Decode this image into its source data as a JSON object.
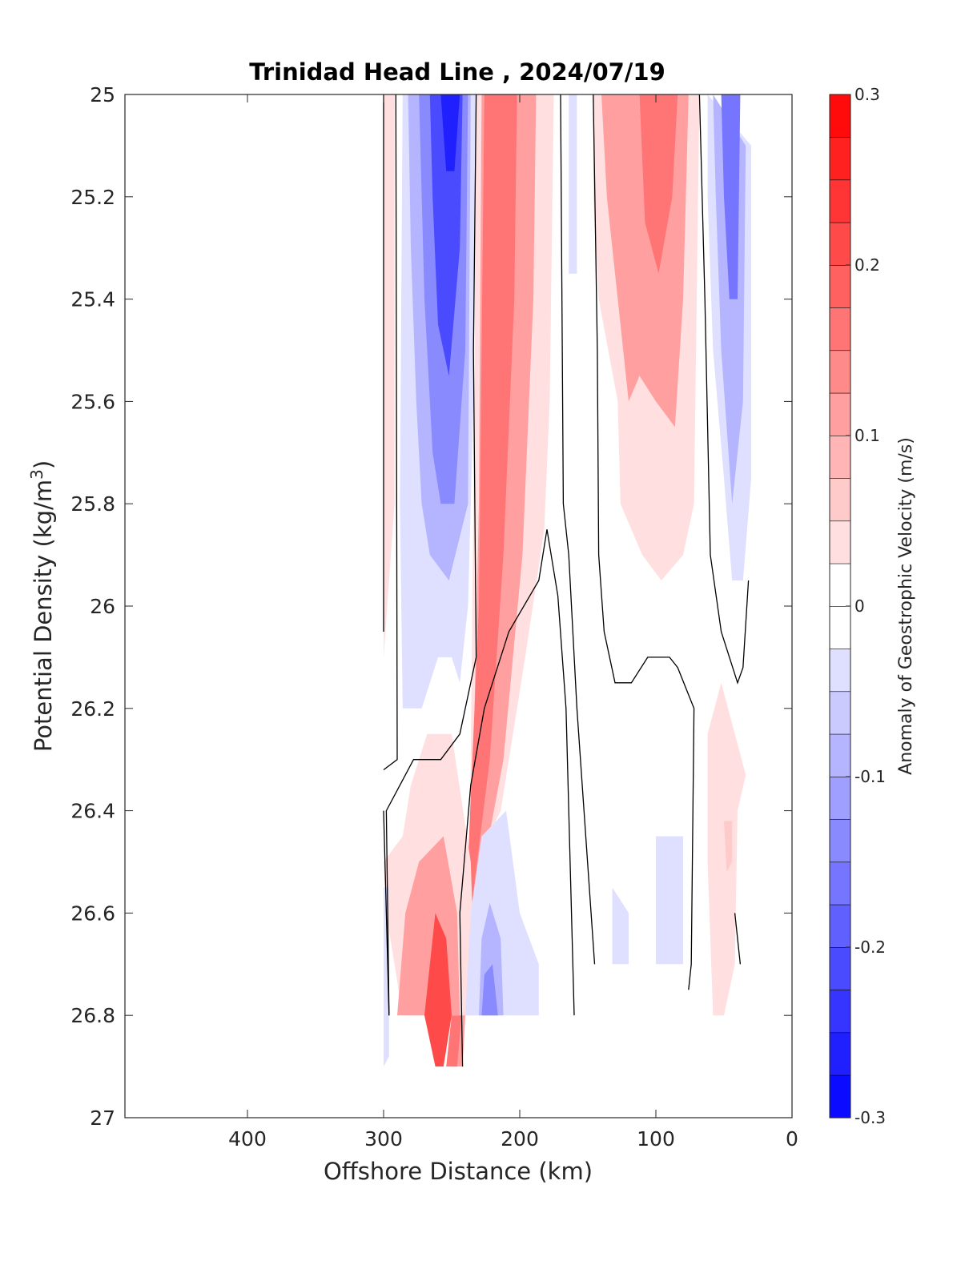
{
  "chart_data": {
    "type": "heatmap",
    "title": "Trinidad Head Line , 2024/07/19",
    "xlabel": "Offshore Distance (km)",
    "ylabel_main": "Potential Density (kg/m",
    "ylabel_sup": "3",
    "ylabel_end": ")",
    "xlim": [
      490,
      0
    ],
    "ylim": [
      25,
      27
    ],
    "x_reversed": true,
    "y_reversed": true,
    "xticks": [
      400,
      300,
      200,
      100,
      0
    ],
    "yticks": [
      25,
      25.2,
      25.4,
      25.6,
      25.8,
      26,
      26.2,
      26.4,
      26.6,
      26.8,
      27
    ],
    "ytick_labels": [
      "25",
      "25.2",
      "25.4",
      "25.6",
      "25.8",
      "26",
      "26.2",
      "26.4",
      "26.6",
      "26.8",
      "27"
    ],
    "colorbar": {
      "label": "Anomaly of Geostrophic Velocity (m/s)",
      "min": -0.3,
      "max": 0.3,
      "levels": 24,
      "ticks": [
        0.3,
        0.2,
        0.1,
        0,
        -0.1,
        -0.2,
        -0.3
      ],
      "tick_labels": [
        "0.3",
        "0.2",
        "0.1",
        "0",
        "-0.1",
        "-0.2",
        "-0.3"
      ],
      "low_color": "#0000ff",
      "mid_color": "#ffffff",
      "high_color": "#ff0000"
    },
    "fields": [
      {
        "value": 0.03,
        "points": [
          [
            300,
            25
          ],
          [
            292,
            25
          ],
          [
            292,
            25.8
          ],
          [
            300,
            26.1
          ]
        ]
      },
      {
        "value": -0.04,
        "points": [
          [
            286,
            25
          ],
          [
            232,
            25
          ],
          [
            234,
            25.6
          ],
          [
            238,
            26
          ],
          [
            244,
            26.15
          ],
          [
            250,
            26.1
          ],
          [
            260,
            26.1
          ],
          [
            272,
            26.2
          ],
          [
            286,
            26.2
          ],
          [
            288,
            25.8
          ]
        ]
      },
      {
        "value": -0.1,
        "points": [
          [
            282,
            25
          ],
          [
            236,
            25
          ],
          [
            238,
            25.8
          ],
          [
            252,
            25.95
          ],
          [
            266,
            25.9
          ],
          [
            272,
            25.8
          ],
          [
            276,
            25.6
          ],
          [
            280,
            25.3
          ]
        ]
      },
      {
        "value": -0.15,
        "points": [
          [
            274,
            25
          ],
          [
            238,
            25
          ],
          [
            240,
            25.5
          ],
          [
            248,
            25.8
          ],
          [
            258,
            25.8
          ],
          [
            264,
            25.7
          ],
          [
            270,
            25.4
          ]
        ]
      },
      {
        "value": -0.2,
        "points": [
          [
            266,
            25
          ],
          [
            242,
            25
          ],
          [
            244,
            25.3
          ],
          [
            252,
            25.55
          ],
          [
            260,
            25.45
          ],
          [
            264,
            25.2
          ]
        ]
      },
      {
        "value": -0.26,
        "points": [
          [
            258,
            25
          ],
          [
            244,
            25
          ],
          [
            248,
            25.15
          ],
          [
            254,
            25.15
          ]
        ]
      },
      {
        "value": 0.04,
        "points": [
          [
            232,
            25
          ],
          [
            175,
            25
          ],
          [
            178,
            25.6
          ],
          [
            182,
            25.85
          ],
          [
            196,
            26.1
          ],
          [
            214,
            26.4
          ],
          [
            232,
            26.5
          ],
          [
            244,
            26.7
          ],
          [
            250,
            26.9
          ],
          [
            244,
            26.9
          ],
          [
            238,
            26.6
          ],
          [
            236,
            26.3
          ],
          [
            234,
            25.8
          ]
        ]
      },
      {
        "value": 0.1,
        "points": [
          [
            228,
            25
          ],
          [
            188,
            25
          ],
          [
            190,
            25.4
          ],
          [
            198,
            25.9
          ],
          [
            212,
            26.3
          ],
          [
            226,
            26.5
          ],
          [
            238,
            26.7
          ],
          [
            242,
            26.9
          ],
          [
            250,
            26.9
          ],
          [
            240,
            26.6
          ],
          [
            234,
            26.3
          ],
          [
            230,
            25.8
          ]
        ]
      },
      {
        "value": 0.16,
        "points": [
          [
            226,
            25
          ],
          [
            202,
            25
          ],
          [
            204,
            25.4
          ],
          [
            212,
            25.9
          ],
          [
            222,
            26.3
          ],
          [
            236,
            26.6
          ],
          [
            246,
            26.9
          ],
          [
            254,
            26.9
          ],
          [
            238,
            26.5
          ],
          [
            230,
            26
          ],
          [
            228,
            25.5
          ]
        ]
      },
      {
        "value": 0.03,
        "points": [
          [
            300,
            26.5
          ],
          [
            286,
            26.45
          ],
          [
            280,
            26.35
          ],
          [
            268,
            26.25
          ],
          [
            250,
            26.25
          ],
          [
            236,
            26.5
          ],
          [
            232,
            26.8
          ],
          [
            286,
            26.8
          ],
          [
            298,
            26.6
          ]
        ]
      },
      {
        "value": 0.1,
        "points": [
          [
            290,
            26.8
          ],
          [
            284,
            26.6
          ],
          [
            274,
            26.5
          ],
          [
            256,
            26.45
          ],
          [
            246,
            26.6
          ],
          [
            244,
            26.8
          ]
        ]
      },
      {
        "value": 0.2,
        "points": [
          [
            270,
            26.8
          ],
          [
            262,
            26.6
          ],
          [
            254,
            26.65
          ],
          [
            250,
            26.8
          ],
          [
            256,
            26.9
          ],
          [
            262,
            26.9
          ]
        ]
      },
      {
        "value": -0.04,
        "points": [
          [
            240,
            26.8
          ],
          [
            236,
            26.6
          ],
          [
            228,
            26.45
          ],
          [
            210,
            26.4
          ],
          [
            200,
            26.6
          ],
          [
            186,
            26.7
          ],
          [
            186,
            26.8
          ]
        ]
      },
      {
        "value": -0.1,
        "points": [
          [
            230,
            26.8
          ],
          [
            228,
            26.65
          ],
          [
            222,
            26.58
          ],
          [
            214,
            26.65
          ],
          [
            212,
            26.8
          ]
        ]
      },
      {
        "value": -0.15,
        "points": [
          [
            228,
            26.8
          ],
          [
            226,
            26.72
          ],
          [
            220,
            26.7
          ],
          [
            216,
            26.8
          ]
        ]
      },
      {
        "value": -0.03,
        "points": [
          [
            300,
            26.55
          ],
          [
            296,
            26.55
          ],
          [
            296,
            26.88
          ],
          [
            300,
            26.9
          ]
        ]
      },
      {
        "value": -0.03,
        "points": [
          [
            164,
            25
          ],
          [
            158,
            25
          ],
          [
            158,
            25.35
          ],
          [
            164,
            25.35
          ]
        ]
      },
      {
        "value": 0.04,
        "points": [
          [
            146,
            25
          ],
          [
            68,
            25
          ],
          [
            70,
            25.4
          ],
          [
            72,
            25.8
          ],
          [
            80,
            25.9
          ],
          [
            96,
            25.95
          ],
          [
            110,
            25.9
          ],
          [
            126,
            25.8
          ],
          [
            128,
            25.6
          ],
          [
            142,
            25.4
          ],
          [
            146,
            25.2
          ]
        ]
      },
      {
        "value": 0.1,
        "points": [
          [
            140,
            25
          ],
          [
            76,
            25
          ],
          [
            80,
            25.4
          ],
          [
            86,
            25.65
          ],
          [
            100,
            25.6
          ],
          [
            112,
            25.55
          ],
          [
            120,
            25.6
          ],
          [
            128,
            25.4
          ],
          [
            136,
            25.2
          ]
        ]
      },
      {
        "value": 0.15,
        "points": [
          [
            112,
            25
          ],
          [
            84,
            25
          ],
          [
            88,
            25.2
          ],
          [
            98,
            25.35
          ],
          [
            108,
            25.25
          ]
        ]
      },
      {
        "value": -0.04,
        "points": [
          [
            62,
            25
          ],
          [
            30,
            25.1
          ],
          [
            30,
            25.75
          ],
          [
            36,
            25.95
          ],
          [
            44,
            25.95
          ],
          [
            50,
            25.75
          ],
          [
            58,
            25.5
          ],
          [
            62,
            25.2
          ]
        ]
      },
      {
        "value": -0.1,
        "points": [
          [
            58,
            25
          ],
          [
            34,
            25.1
          ],
          [
            36,
            25.6
          ],
          [
            44,
            25.8
          ],
          [
            52,
            25.5
          ],
          [
            56,
            25.2
          ]
        ]
      },
      {
        "value": -0.16,
        "points": [
          [
            52,
            25
          ],
          [
            38,
            25
          ],
          [
            40,
            25.4
          ],
          [
            46,
            25.4
          ],
          [
            50,
            25.2
          ]
        ]
      },
      {
        "value": 0.04,
        "points": [
          [
            62,
            26.25
          ],
          [
            52,
            26.15
          ],
          [
            42,
            26.25
          ],
          [
            34,
            26.33
          ],
          [
            40,
            26.4
          ],
          [
            42,
            26.7
          ],
          [
            50,
            26.8
          ],
          [
            58,
            26.8
          ],
          [
            62,
            26.5
          ]
        ]
      },
      {
        "value": 0.07,
        "points": [
          [
            50,
            26.42
          ],
          [
            44,
            26.42
          ],
          [
            44,
            26.5
          ],
          [
            48,
            26.52
          ]
        ]
      },
      {
        "value": -0.03,
        "points": [
          [
            132,
            26.55
          ],
          [
            120,
            26.6
          ],
          [
            120,
            26.7
          ],
          [
            132,
            26.7
          ]
        ]
      },
      {
        "value": -0.03,
        "points": [
          [
            100,
            26.45
          ],
          [
            80,
            26.45
          ],
          [
            80,
            26.7
          ],
          [
            100,
            26.7
          ]
        ]
      }
    ],
    "contours": [
      [
        [
          300,
          25
        ],
        [
          300,
          26.05
        ]
      ],
      [
        [
          291,
          25
        ],
        [
          290,
          26.3
        ],
        [
          300,
          26.32
        ]
      ],
      [
        [
          300,
          26.4
        ],
        [
          296,
          26.8
        ]
      ],
      [
        [
          296,
          26.8
        ],
        [
          298,
          26.4
        ],
        [
          288,
          26.35
        ],
        [
          278,
          26.3
        ],
        [
          264,
          26.3
        ],
        [
          258,
          26.3
        ],
        [
          244,
          26.25
        ],
        [
          240,
          26.2
        ],
        [
          232,
          26.1
        ],
        [
          234,
          25.5
        ],
        [
          232,
          25
        ]
      ],
      [
        [
          242,
          26.9
        ],
        [
          244,
          26.6
        ],
        [
          236,
          26.35
        ],
        [
          226,
          26.2
        ],
        [
          208,
          26.05
        ],
        [
          186,
          25.95
        ],
        [
          180,
          25.85
        ],
        [
          172,
          25.98
        ],
        [
          166,
          26.2
        ],
        [
          160,
          26.8
        ]
      ],
      [
        [
          170,
          25
        ],
        [
          168,
          25.8
        ],
        [
          164,
          25.9
        ],
        [
          158,
          26.2
        ],
        [
          145,
          26.7
        ]
      ],
      [
        [
          146,
          25
        ],
        [
          143,
          25.5
        ],
        [
          142,
          25.9
        ],
        [
          138,
          26.05
        ],
        [
          130,
          26.15
        ],
        [
          118,
          26.15
        ],
        [
          106,
          26.1
        ],
        [
          96,
          26.1
        ],
        [
          90,
          26.1
        ],
        [
          84,
          26.12
        ],
        [
          72,
          26.2
        ],
        [
          74,
          26.7
        ],
        [
          76,
          26.75
        ]
      ],
      [
        [
          68,
          25
        ],
        [
          64,
          25.4
        ],
        [
          60,
          25.9
        ],
        [
          52,
          26.05
        ],
        [
          40,
          26.15
        ],
        [
          36,
          26.12
        ],
        [
          32,
          25.95
        ]
      ],
      [
        [
          42,
          26.6
        ],
        [
          38,
          26.7
        ]
      ]
    ]
  }
}
